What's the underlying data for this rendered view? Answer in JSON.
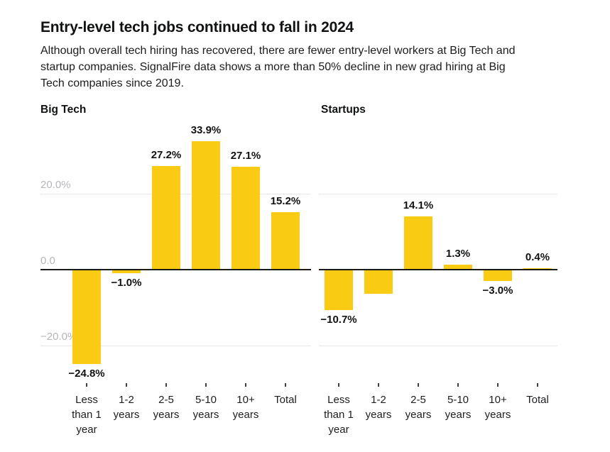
{
  "page": {
    "title": "Entry-level tech jobs continued to fall in 2024",
    "subtitle": "Although overall tech hiring has recovered, there are fewer entry-level workers at Big Tech and startup companies. SignalFire data shows a more than 50% decline in new grad hiring at Big Tech companies since 2019."
  },
  "colors": {
    "bar": "#F9CC13",
    "axis": "#1A1A1A",
    "gridline": "#E7E7E7",
    "y_tick_label": "#B6B6BA",
    "text": "#111213"
  },
  "chart_data": [
    {
      "type": "bar",
      "title": "Big Tech",
      "categories": [
        "Less than 1 year",
        "1-2 years",
        "2-5 years",
        "5-10 years",
        "10+ years",
        "Total"
      ],
      "values": [
        -24.8,
        -1.0,
        27.2,
        33.9,
        27.1,
        15.2
      ],
      "value_labels": [
        "−24.8%",
        "−1.0%",
        "27.2%",
        "33.9%",
        "27.1%",
        "15.2%"
      ],
      "unit": "%",
      "ylim": [
        -30,
        40
      ],
      "grid": true,
      "legend": false,
      "y_ticks": [
        {
          "value": 20,
          "label": "20.0%"
        },
        {
          "value": 0,
          "label": "0.0"
        },
        {
          "value": -20,
          "label": "−20.0%"
        }
      ]
    },
    {
      "type": "bar",
      "title": "Startups",
      "categories": [
        "Less than 1 year",
        "1-2 years",
        "2-5 years",
        "5-10 years",
        "10+ years",
        "Total"
      ],
      "values": [
        -10.7,
        -6.3,
        14.1,
        1.3,
        -3.0,
        0.4
      ],
      "value_labels": [
        "−10.7%",
        "",
        "14.1%",
        "1.3%",
        "−3.0%",
        "0.4%"
      ],
      "unit": "%",
      "ylim": [
        -30,
        40
      ],
      "grid": true,
      "legend": false,
      "y_ticks": [
        {
          "value": 20,
          "label": ""
        },
        {
          "value": 0,
          "label": ""
        },
        {
          "value": -20,
          "label": ""
        }
      ]
    }
  ]
}
